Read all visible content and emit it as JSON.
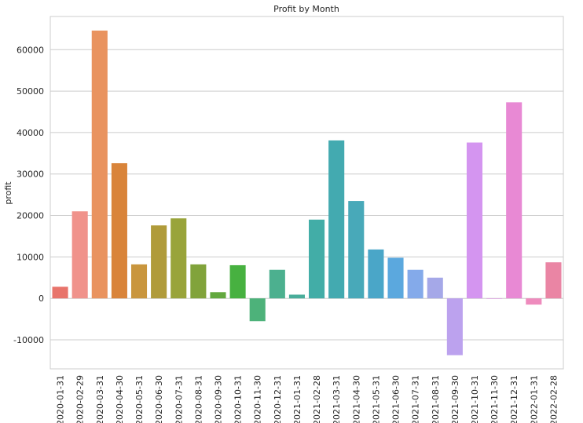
{
  "chart_data": {
    "type": "bar",
    "title": "Profit by Month",
    "xlabel": "",
    "ylabel": "profit",
    "ylim": [
      -17000,
      68000
    ],
    "yticks": [
      -10000,
      0,
      10000,
      20000,
      30000,
      40000,
      50000,
      60000
    ],
    "grid": true,
    "categories": [
      "2020-01-31",
      "2020-02-29",
      "2020-03-31",
      "2020-04-30",
      "2020-05-31",
      "2020-06-30",
      "2020-07-31",
      "2020-08-31",
      "2020-09-30",
      "2020-10-31",
      "2020-11-30",
      "2020-12-31",
      "2021-01-31",
      "2021-02-28",
      "2021-03-31",
      "2021-04-30",
      "2021-05-31",
      "2021-06-30",
      "2021-07-31",
      "2021-08-31",
      "2021-09-30",
      "2021-10-31",
      "2021-11-30",
      "2021-12-31",
      "2022-01-31",
      "2022-02-28"
    ],
    "values": [
      2800,
      21000,
      64600,
      32600,
      8200,
      17600,
      19300,
      8200,
      1500,
      8000,
      -5500,
      6900,
      900,
      19000,
      38100,
      23500,
      11800,
      9800,
      6900,
      5000,
      -13700,
      37600,
      0,
      47300,
      -1500,
      8700
    ],
    "colors": [
      "#e8746b",
      "#f0928b",
      "#e9935f",
      "#d9843a",
      "#c9963e",
      "#b09b3a",
      "#99a43a",
      "#81a33b",
      "#62a83e",
      "#47b140",
      "#4db27a",
      "#4cb08f",
      "#49ad9a",
      "#42ada7",
      "#43aab0",
      "#48a9b9",
      "#4aa6c8",
      "#5ba8de",
      "#84aaea",
      "#a5a8e8",
      "#bca2ee",
      "#d495f0",
      "#e08ce8",
      "#e889d4",
      "#ee8bbd",
      "#ea85a4"
    ]
  }
}
